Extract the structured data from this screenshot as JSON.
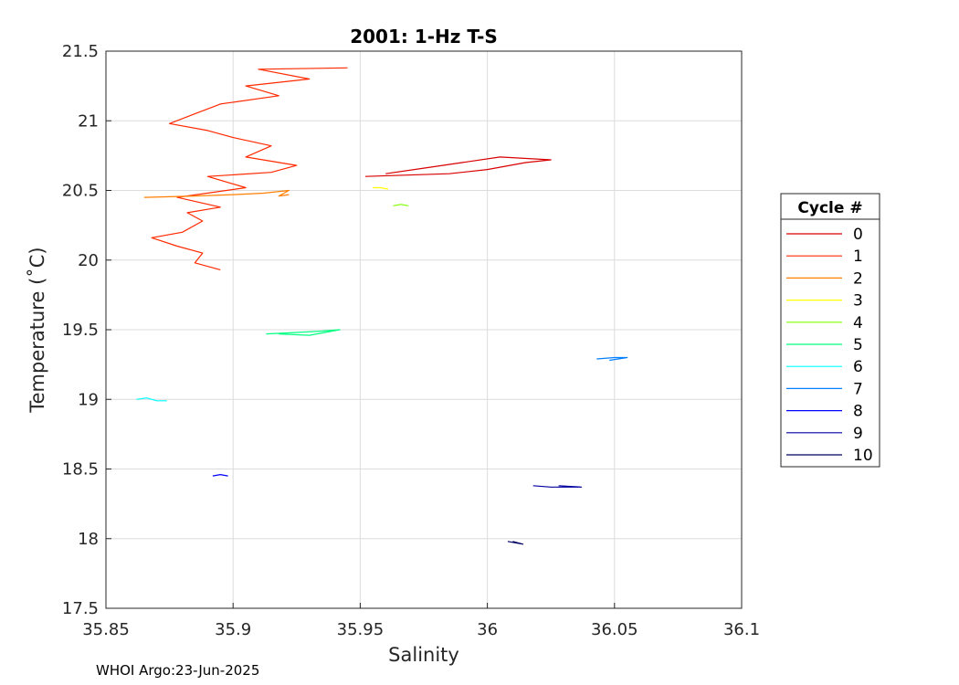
{
  "chart_data": {
    "type": "line",
    "title": "2001: 1-Hz T-S",
    "xlabel": "Salinity",
    "ylabel": "Temperature (˚C)",
    "xlim": [
      35.85,
      36.1
    ],
    "ylim": [
      17.5,
      21.5
    ],
    "xticks": [
      "35.85",
      "35.9",
      "35.95",
      "36",
      "36.05",
      "36.1"
    ],
    "yticks": [
      "17.5",
      "18",
      "18.5",
      "19",
      "19.5",
      "20",
      "20.5",
      "21",
      "21.5"
    ],
    "grid": true,
    "legend": {
      "title": "Cycle #",
      "placement": "right"
    },
    "series": [
      {
        "name": "0",
        "color": "#d90000",
        "points": [
          [
            35.952,
            20.6
          ],
          [
            35.985,
            20.62
          ],
          [
            36.0,
            20.65
          ],
          [
            36.015,
            20.7
          ],
          [
            36.025,
            20.72
          ],
          [
            36.005,
            20.74
          ],
          [
            35.99,
            20.7
          ],
          [
            35.975,
            20.66
          ],
          [
            35.96,
            20.62
          ]
        ]
      },
      {
        "name": "1",
        "color": "#ff2a00",
        "points": [
          [
            35.895,
            19.93
          ],
          [
            35.885,
            19.98
          ],
          [
            35.888,
            20.05
          ],
          [
            35.878,
            20.1
          ],
          [
            35.868,
            20.16
          ],
          [
            35.88,
            20.2
          ],
          [
            35.888,
            20.28
          ],
          [
            35.882,
            20.34
          ],
          [
            35.895,
            20.38
          ],
          [
            35.878,
            20.45
          ],
          [
            35.905,
            20.52
          ],
          [
            35.89,
            20.6
          ],
          [
            35.915,
            20.63
          ],
          [
            35.925,
            20.68
          ],
          [
            35.905,
            20.74
          ],
          [
            35.915,
            20.82
          ],
          [
            35.9,
            20.88
          ],
          [
            35.89,
            20.93
          ],
          [
            35.875,
            20.98
          ],
          [
            35.885,
            21.05
          ],
          [
            35.895,
            21.12
          ],
          [
            35.918,
            21.18
          ],
          [
            35.905,
            21.25
          ],
          [
            35.93,
            21.3
          ],
          [
            35.91,
            21.37
          ],
          [
            35.945,
            21.38
          ]
        ]
      },
      {
        "name": "2",
        "color": "#ff7f00",
        "points": [
          [
            35.865,
            20.45
          ],
          [
            35.885,
            20.46
          ],
          [
            35.9,
            20.47
          ],
          [
            35.912,
            20.48
          ],
          [
            35.922,
            20.5
          ],
          [
            35.918,
            20.46
          ],
          [
            35.922,
            20.47
          ]
        ]
      },
      {
        "name": "3",
        "color": "#ffff00",
        "points": [
          [
            35.955,
            20.52
          ],
          [
            35.958,
            20.52
          ],
          [
            35.961,
            20.51
          ]
        ]
      },
      {
        "name": "4",
        "color": "#80ff00",
        "points": [
          [
            35.963,
            20.39
          ],
          [
            35.966,
            20.4
          ],
          [
            35.969,
            20.39
          ]
        ]
      },
      {
        "name": "5",
        "color": "#00ff80",
        "points": [
          [
            35.913,
            19.47
          ],
          [
            35.925,
            19.48
          ],
          [
            35.935,
            19.49
          ],
          [
            35.942,
            19.5
          ],
          [
            35.93,
            19.46
          ],
          [
            35.918,
            19.47
          ]
        ]
      },
      {
        "name": "6",
        "color": "#00ffff",
        "points": [
          [
            35.862,
            19.0
          ],
          [
            35.866,
            19.01
          ],
          [
            35.87,
            18.99
          ],
          [
            35.874,
            18.99
          ]
        ]
      },
      {
        "name": "7",
        "color": "#007fff",
        "points": [
          [
            36.043,
            19.29
          ],
          [
            36.05,
            19.3
          ],
          [
            36.055,
            19.3
          ],
          [
            36.048,
            19.28
          ]
        ]
      },
      {
        "name": "8",
        "color": "#0000ff",
        "points": [
          [
            35.892,
            18.45
          ],
          [
            35.895,
            18.46
          ],
          [
            35.898,
            18.45
          ]
        ]
      },
      {
        "name": "9",
        "color": "#0000a0",
        "points": [
          [
            36.018,
            18.38
          ],
          [
            36.025,
            18.37
          ],
          [
            36.032,
            18.37
          ],
          [
            36.037,
            18.37
          ],
          [
            36.028,
            18.38
          ]
        ]
      },
      {
        "name": "10",
        "color": "#000060",
        "points": [
          [
            36.008,
            17.98
          ],
          [
            36.011,
            17.97
          ],
          [
            36.014,
            17.96
          ],
          [
            36.01,
            17.98
          ]
        ]
      }
    ]
  },
  "footer": "WHOI Argo:23-Jun-2025"
}
